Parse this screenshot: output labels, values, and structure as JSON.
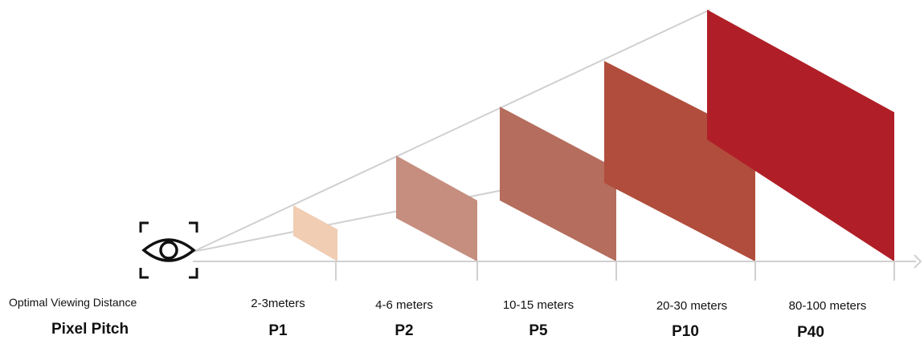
{
  "labels": {
    "distance_row": "Optimal Viewing Distance",
    "pitch_row": "Pixel Pitch"
  },
  "icon": "eye-icon",
  "colors": {
    "guide_line": "#d0d0d0",
    "axis_line": "#d0d0d0"
  },
  "screens": [
    {
      "distance": "2-3meters",
      "pitch": "P1",
      "color": "#f0cdb3"
    },
    {
      "distance": "4-6 meters",
      "pitch": "P2",
      "color": "#c58e7f"
    },
    {
      "distance": "10-15 meters",
      "pitch": "P5",
      "color": "#b56d5d"
    },
    {
      "distance": "20-30 meters",
      "pitch": "P10",
      "color": "#b14d3c"
    },
    {
      "distance": "80-100 meters",
      "pitch": "P40",
      "color": "#b01f27"
    }
  ]
}
